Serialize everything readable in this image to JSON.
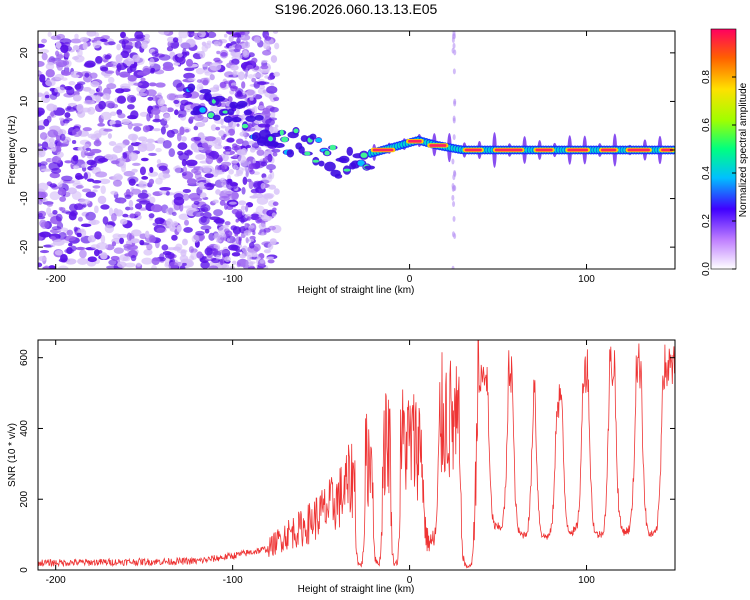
{
  "chart_data": [
    {
      "type": "heatmap",
      "title": "S196.2026.060.13.13.E05",
      "xlabel": "Height of straight line (km)",
      "ylabel": "Frequency (Hz)",
      "xlim": [
        -210,
        150
      ],
      "ylim": [
        -24.5,
        24.5
      ],
      "x_ticks": [
        -200,
        -100,
        0,
        100
      ],
      "x_tick_labels": [
        "-200",
        "-100",
        "0",
        "100"
      ],
      "y_ticks": [
        -20,
        -10,
        0,
        10,
        20
      ],
      "y_tick_labels": [
        "-20",
        "-10",
        "0",
        "10",
        "20"
      ],
      "colorbar": {
        "label": "Normalized spectral amplitude",
        "range": [
          0,
          1
        ],
        "ticks": [
          0.0,
          0.2,
          0.4,
          0.6,
          0.8
        ],
        "tick_labels": [
          "0.0",
          "0.2",
          "0.4",
          "0.6",
          "0.8"
        ]
      },
      "ridge_frequency": [
        {
          "x": -120,
          "f": 10
        },
        {
          "x": -100,
          "f": 8
        },
        {
          "x": -80,
          "f": 4
        },
        {
          "x": -60,
          "f": 1
        },
        {
          "x": -45,
          "f": -2
        },
        {
          "x": -35,
          "f": -3
        },
        {
          "x": -25,
          "f": -1
        },
        {
          "x": -15,
          "f": 0
        },
        {
          "x": -5,
          "f": 1
        },
        {
          "x": 5,
          "f": 2
        },
        {
          "x": 15,
          "f": 1
        },
        {
          "x": 30,
          "f": 0
        },
        {
          "x": 150,
          "f": 0
        }
      ],
      "ridge_segments": [
        [
          -22,
          -8
        ],
        [
          -2,
          8
        ],
        [
          10,
          22
        ],
        [
          30,
          42
        ],
        [
          47,
          65
        ],
        [
          70,
          82
        ],
        [
          88,
          102
        ],
        [
          107,
          118
        ],
        [
          122,
          137
        ],
        [
          141,
          150
        ]
      ]
    },
    {
      "type": "line",
      "title": "",
      "xlabel": "Height of straight line (km)",
      "ylabel": "SNR (10 * v/v)",
      "xlim": [
        -210,
        150
      ],
      "ylim": [
        0,
        650
      ],
      "x_ticks": [
        -200,
        -100,
        0,
        100
      ],
      "x_tick_labels": [
        "-200",
        "-100",
        "0",
        "100"
      ],
      "y_ticks": [
        0,
        200,
        400,
        600
      ],
      "y_tick_labels": [
        "0",
        "200",
        "400",
        "600"
      ],
      "color": "#ee3333",
      "envelope": [
        {
          "x": -210,
          "y": 20
        },
        {
          "x": -120,
          "y": 25
        },
        {
          "x": -100,
          "y": 40
        },
        {
          "x": -80,
          "y": 60
        },
        {
          "x": -70,
          "y": 100
        },
        {
          "x": -60,
          "y": 120
        },
        {
          "x": -50,
          "y": 160
        },
        {
          "x": -40,
          "y": 200
        },
        {
          "x": -30,
          "y": 280
        },
        {
          "x": -20,
          "y": 330
        },
        {
          "x": -10,
          "y": 380
        },
        {
          "x": 0,
          "y": 360
        },
        {
          "x": 10,
          "y": 350
        },
        {
          "x": 20,
          "y": 440
        },
        {
          "x": 30,
          "y": 380
        },
        {
          "x": 40,
          "y": 530
        },
        {
          "x": 50,
          "y": 590
        },
        {
          "x": 60,
          "y": 560
        },
        {
          "x": 70,
          "y": 520
        },
        {
          "x": 80,
          "y": 440
        },
        {
          "x": 90,
          "y": 540
        },
        {
          "x": 100,
          "y": 570
        },
        {
          "x": 120,
          "y": 580
        },
        {
          "x": 150,
          "y": 570
        }
      ],
      "dips": [
        {
          "x": -28,
          "w": 3,
          "y": 15
        },
        {
          "x": -18,
          "w": 3,
          "y": 20
        },
        {
          "x": -8,
          "w": 3,
          "y": 20
        },
        {
          "x": 12,
          "w": 5,
          "y": 80
        },
        {
          "x": 33,
          "w": 5,
          "y": 10
        },
        {
          "x": 50,
          "w": 6,
          "y": 120
        },
        {
          "x": 64,
          "w": 6,
          "y": 100
        },
        {
          "x": 77,
          "w": 6,
          "y": 95
        },
        {
          "x": 92,
          "w": 6,
          "y": 110
        },
        {
          "x": 107,
          "w": 6,
          "y": 100
        },
        {
          "x": 122,
          "w": 6,
          "y": 110
        },
        {
          "x": 137,
          "w": 6,
          "y": 100
        }
      ]
    }
  ]
}
